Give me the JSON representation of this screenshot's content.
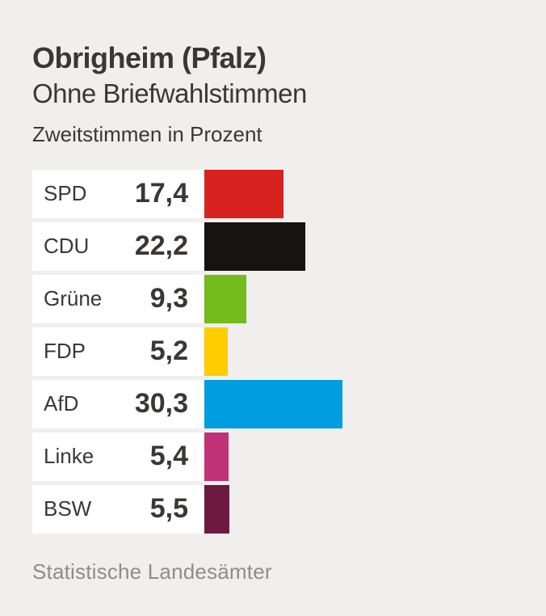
{
  "header": {
    "title": "Obrigheim (Pfalz)",
    "subtitle": "Ohne Briefwahlstimmen",
    "note": "Zweitstimmen in Prozent"
  },
  "chart_data": {
    "type": "bar",
    "orientation": "horizontal",
    "title": "Obrigheim (Pfalz)",
    "subtitle": "Ohne Briefwahlstimmen",
    "unit_label": "Zweitstimmen in Prozent",
    "categories": [
      "SPD",
      "CDU",
      "Grüne",
      "FDP",
      "AfD",
      "Linke",
      "BSW"
    ],
    "values": [
      17.4,
      22.2,
      9.3,
      5.2,
      30.3,
      5.4,
      5.5
    ],
    "value_labels": [
      "17,4",
      "22,2",
      "9,3",
      "5,2",
      "30,3",
      "5,4",
      "5,5"
    ],
    "bar_colors": [
      "#d7221f",
      "#151413",
      "#74bc1c",
      "#ffcc00",
      "#009ee0",
      "#c03377",
      "#6d1a41"
    ],
    "xlim": [
      0,
      30.3
    ],
    "grid": false,
    "legend": false
  },
  "footer": {
    "source": "Statistische Landesämter"
  },
  "theme": {
    "background": "#f0efed",
    "row_background": "#ffffff",
    "text_color": "#3a3836",
    "source_color": "#8e8d8b"
  }
}
